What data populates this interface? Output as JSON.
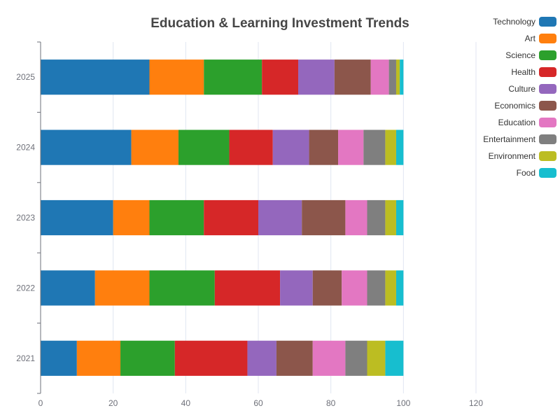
{
  "chart_data": {
    "type": "bar",
    "orientation": "horizontal",
    "stacked": true,
    "title": "Education & Learning Investment Trends",
    "categories": [
      "2021",
      "2022",
      "2023",
      "2024",
      "2025"
    ],
    "series": [
      {
        "name": "Technology",
        "color": "#1f77b4",
        "values": [
          10,
          15,
          20,
          25,
          30
        ]
      },
      {
        "name": "Art",
        "color": "#ff7f0e",
        "values": [
          12,
          15,
          10,
          13,
          15
        ]
      },
      {
        "name": "Science",
        "color": "#2ca02c",
        "values": [
          15,
          18,
          15,
          14,
          16
        ]
      },
      {
        "name": "Health",
        "color": "#d62728",
        "values": [
          20,
          18,
          15,
          12,
          10
        ]
      },
      {
        "name": "Culture",
        "color": "#9467bd",
        "values": [
          8,
          9,
          12,
          10,
          10
        ]
      },
      {
        "name": "Economics",
        "color": "#8c564b",
        "values": [
          10,
          8,
          12,
          8,
          10
        ]
      },
      {
        "name": "Education",
        "color": "#e377c2",
        "values": [
          9,
          7,
          6,
          7,
          5
        ]
      },
      {
        "name": "Entertainment",
        "color": "#7f7f7f",
        "values": [
          6,
          5,
          5,
          6,
          2
        ]
      },
      {
        "name": "Environment",
        "color": "#bcbd22",
        "values": [
          5,
          3,
          3,
          3,
          1
        ]
      },
      {
        "name": "Food",
        "color": "#17becf",
        "values": [
          5,
          2,
          2,
          2,
          1
        ]
      }
    ],
    "xlim": [
      0,
      120
    ],
    "xticks": [
      0,
      20,
      40,
      60,
      80,
      100,
      120
    ],
    "xlabel": "",
    "ylabel": "",
    "grid": "vertical",
    "legend": "right"
  }
}
